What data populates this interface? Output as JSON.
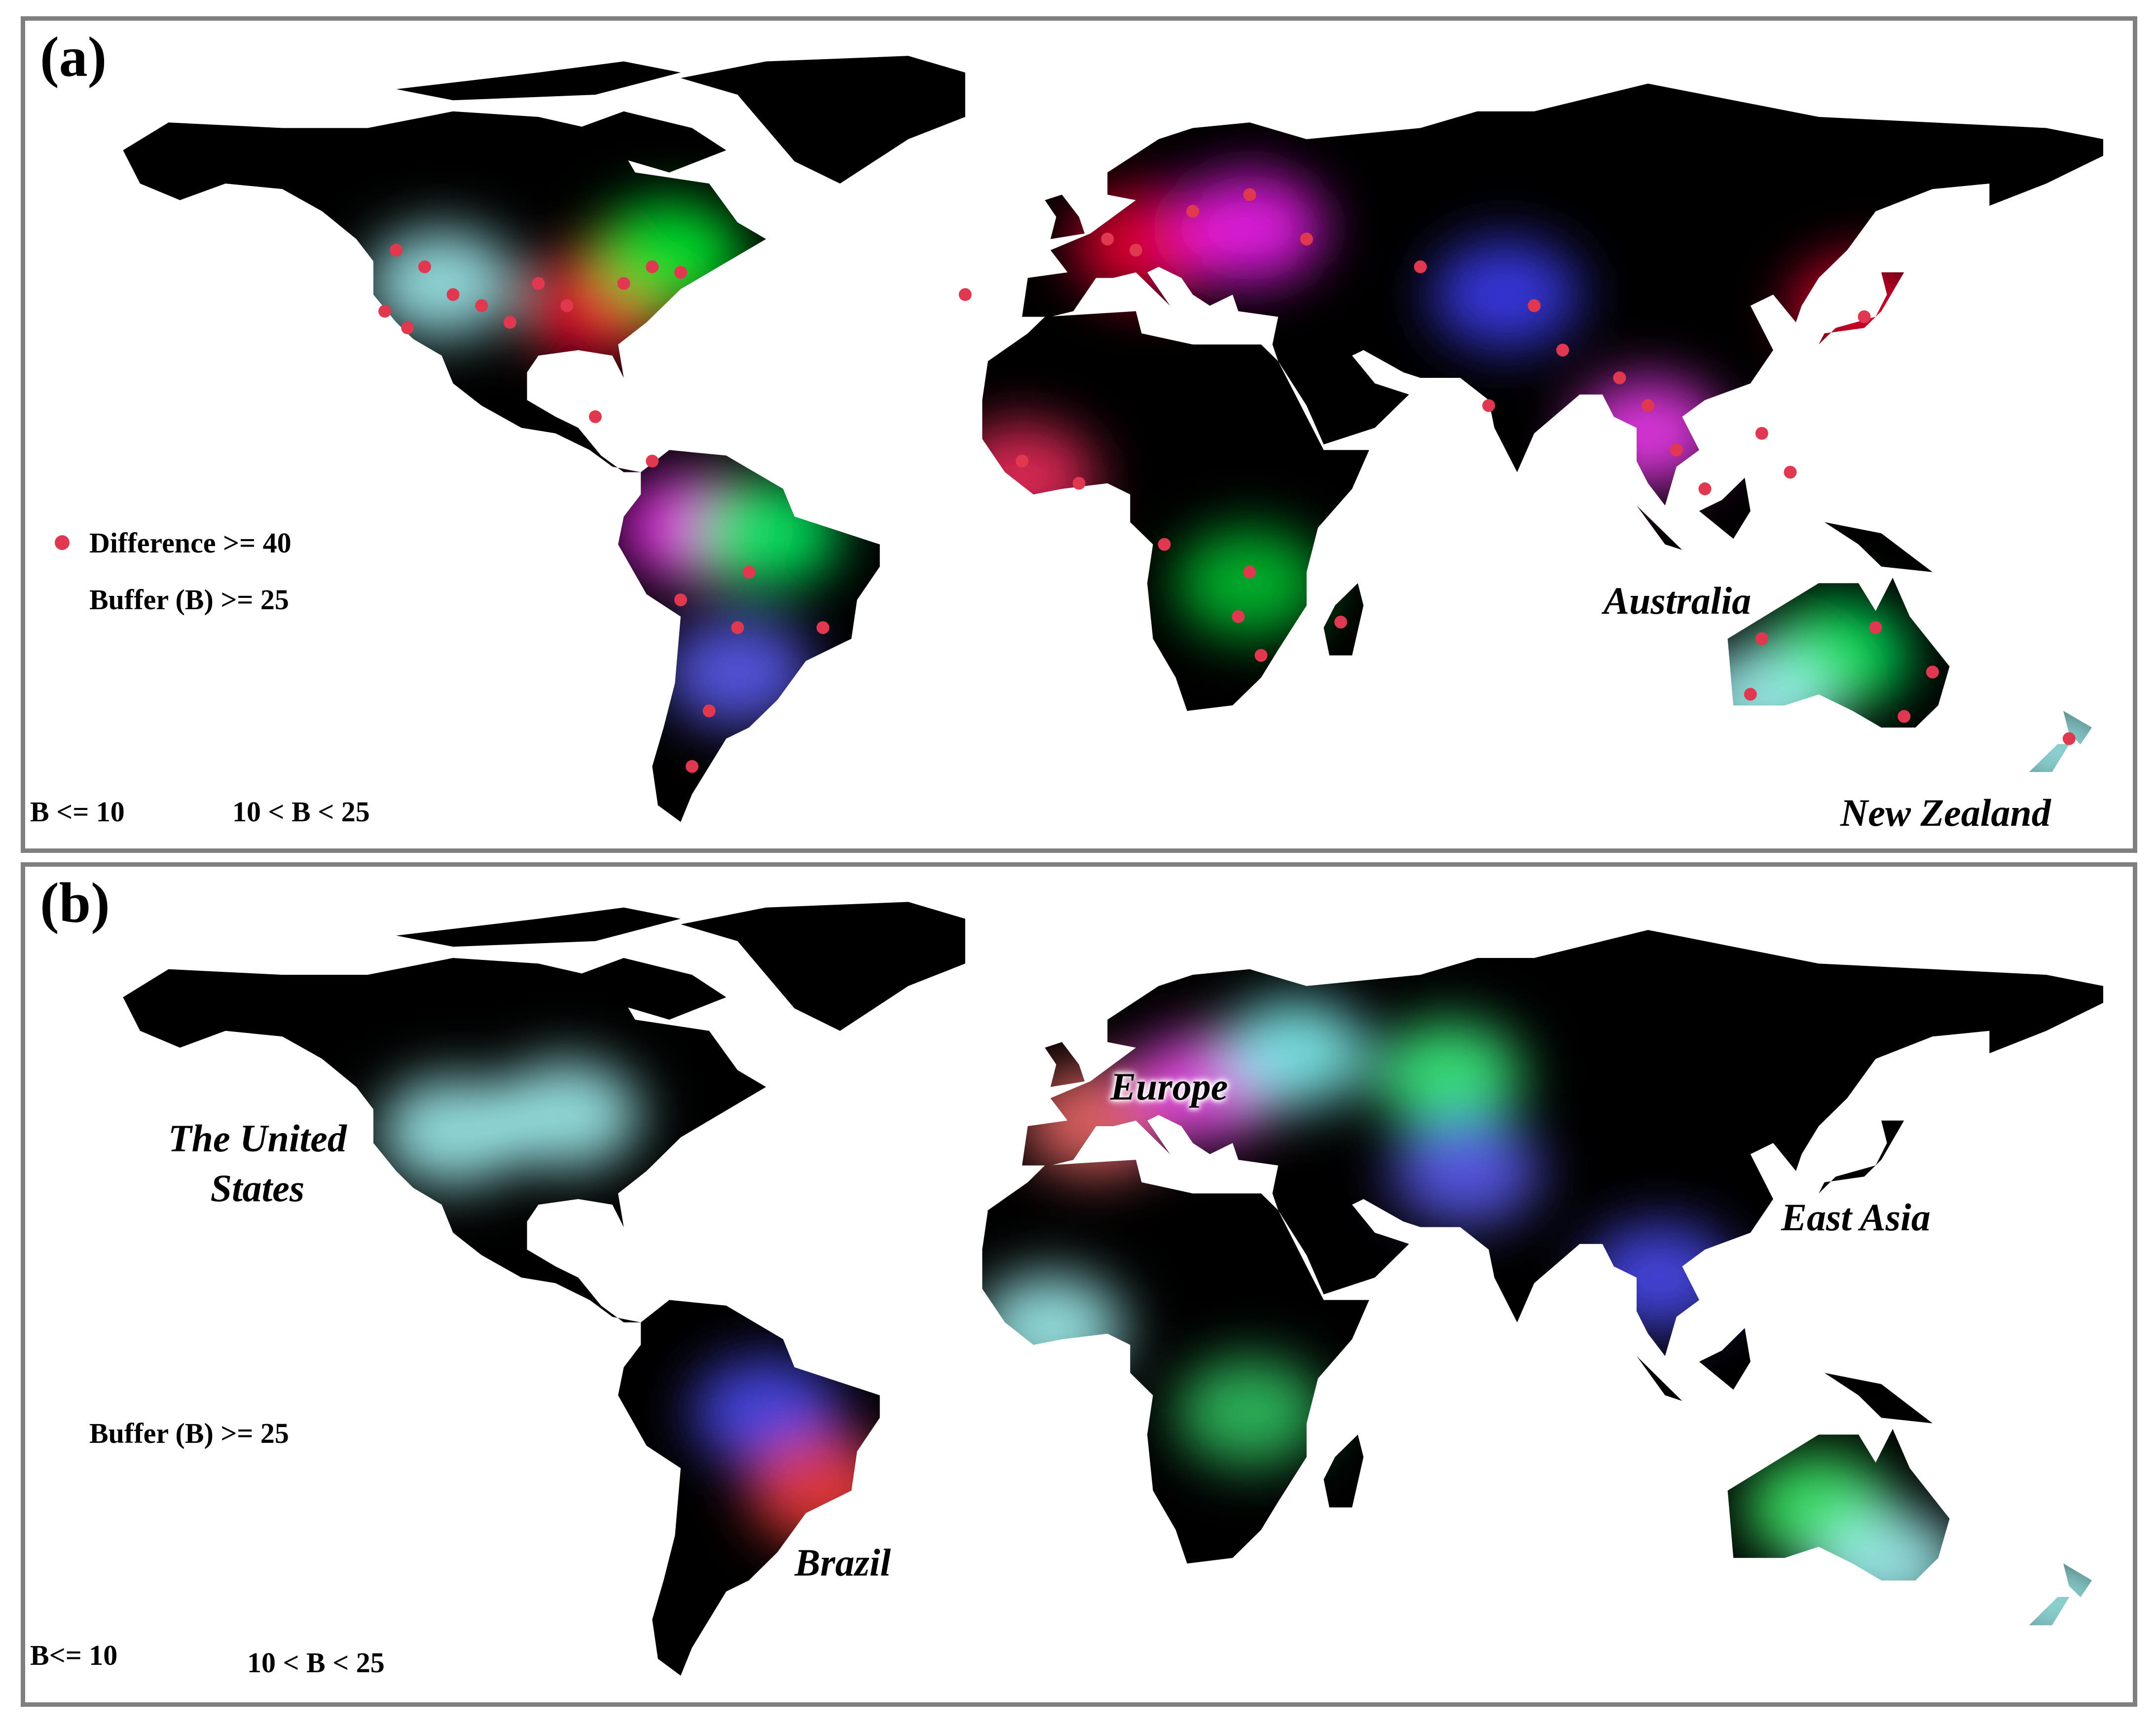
{
  "panels": [
    {
      "tag": "(a)",
      "legend": {
        "dot_label": "Difference >= 40",
        "top_label": "Buffer (B) >= 25",
        "left_label": "B <= 10",
        "right_label": "10 < B < 25"
      },
      "regions": [
        "Australia",
        "New Zealand"
      ]
    },
    {
      "tag": "(b)",
      "legend": {
        "top_label": "Buffer (B) >= 25",
        "left_label": "B<= 10",
        "right_label": "10 < B < 25"
      },
      "regions": [
        "The United",
        "States",
        "Europe",
        "East Asia",
        "Brazil"
      ]
    }
  ],
  "colors": {
    "land": "#000000",
    "ocean": "#ffffff",
    "frame": "#7f7f7f",
    "dot": "#e0384f",
    "legend_red": "#ff0000",
    "legend_green": "#00ff00",
    "legend_blue": "#0000ff"
  },
  "map_marks": {
    "panel_a": [
      {
        "color": "#ff0035",
        "lon": -85,
        "lat": 38
      },
      {
        "color": "#ff0035",
        "lon": 12,
        "lat": 49
      },
      {
        "color": "#ff20ff",
        "lon": 30,
        "lat": 52
      },
      {
        "color": "#aafcff",
        "lon": -112,
        "lat": 42
      },
      {
        "color": "#00ff33",
        "lon": -72,
        "lat": 47
      },
      {
        "color": "#ff0033",
        "lon": 138,
        "lat": 37
      },
      {
        "color": "#ff40ff",
        "lon": 100,
        "lat": 15
      },
      {
        "color": "#00ff66",
        "lon": 133,
        "lat": -25
      },
      {
        "color": "#aaffff",
        "lon": 120,
        "lat": -33
      },
      {
        "color": "#ff30ff",
        "lon": -68,
        "lat": -2
      },
      {
        "color": "#00ff66",
        "lon": -55,
        "lat": -3
      },
      {
        "color": "#00cc33",
        "lon": 30,
        "lat": -12
      },
      {
        "color": "#4040ff",
        "lon": 75,
        "lat": 40
      },
      {
        "color": "#ff3060",
        "lon": -10,
        "lat": 7
      },
      {
        "color": "#6060ff",
        "lon": -60,
        "lat": -28
      },
      {
        "color": "#aaffff",
        "lon": 172,
        "lat": -42
      }
    ],
    "panel_b": [
      {
        "color": "#aaffff",
        "lon": -110,
        "lat": 42
      },
      {
        "color": "#aaffff",
        "lon": -90,
        "lat": 45
      },
      {
        "color": "#ff7070",
        "lon": 3,
        "lat": 44
      },
      {
        "color": "#ff50ff",
        "lon": 22,
        "lat": 50
      },
      {
        "color": "#88ffff",
        "lon": 38,
        "lat": 56
      },
      {
        "color": "#40ff88",
        "lon": 65,
        "lat": 52
      },
      {
        "color": "#5050ff",
        "lon": 102,
        "lat": 16
      },
      {
        "color": "#40ff70",
        "lon": 130,
        "lat": -25
      },
      {
        "color": "#aaffff",
        "lon": 142,
        "lat": -35
      },
      {
        "color": "#5050ff",
        "lon": -55,
        "lat": -8
      },
      {
        "color": "#ff4040",
        "lon": -45,
        "lat": -22
      },
      {
        "color": "#aaffff",
        "lon": -5,
        "lat": 7
      },
      {
        "color": "#33cc66",
        "lon": 30,
        "lat": -8
      },
      {
        "color": "#aaffff",
        "lon": 172,
        "lat": -42
      },
      {
        "color": "#6060ff",
        "lon": 68,
        "lat": 35
      }
    ]
  }
}
